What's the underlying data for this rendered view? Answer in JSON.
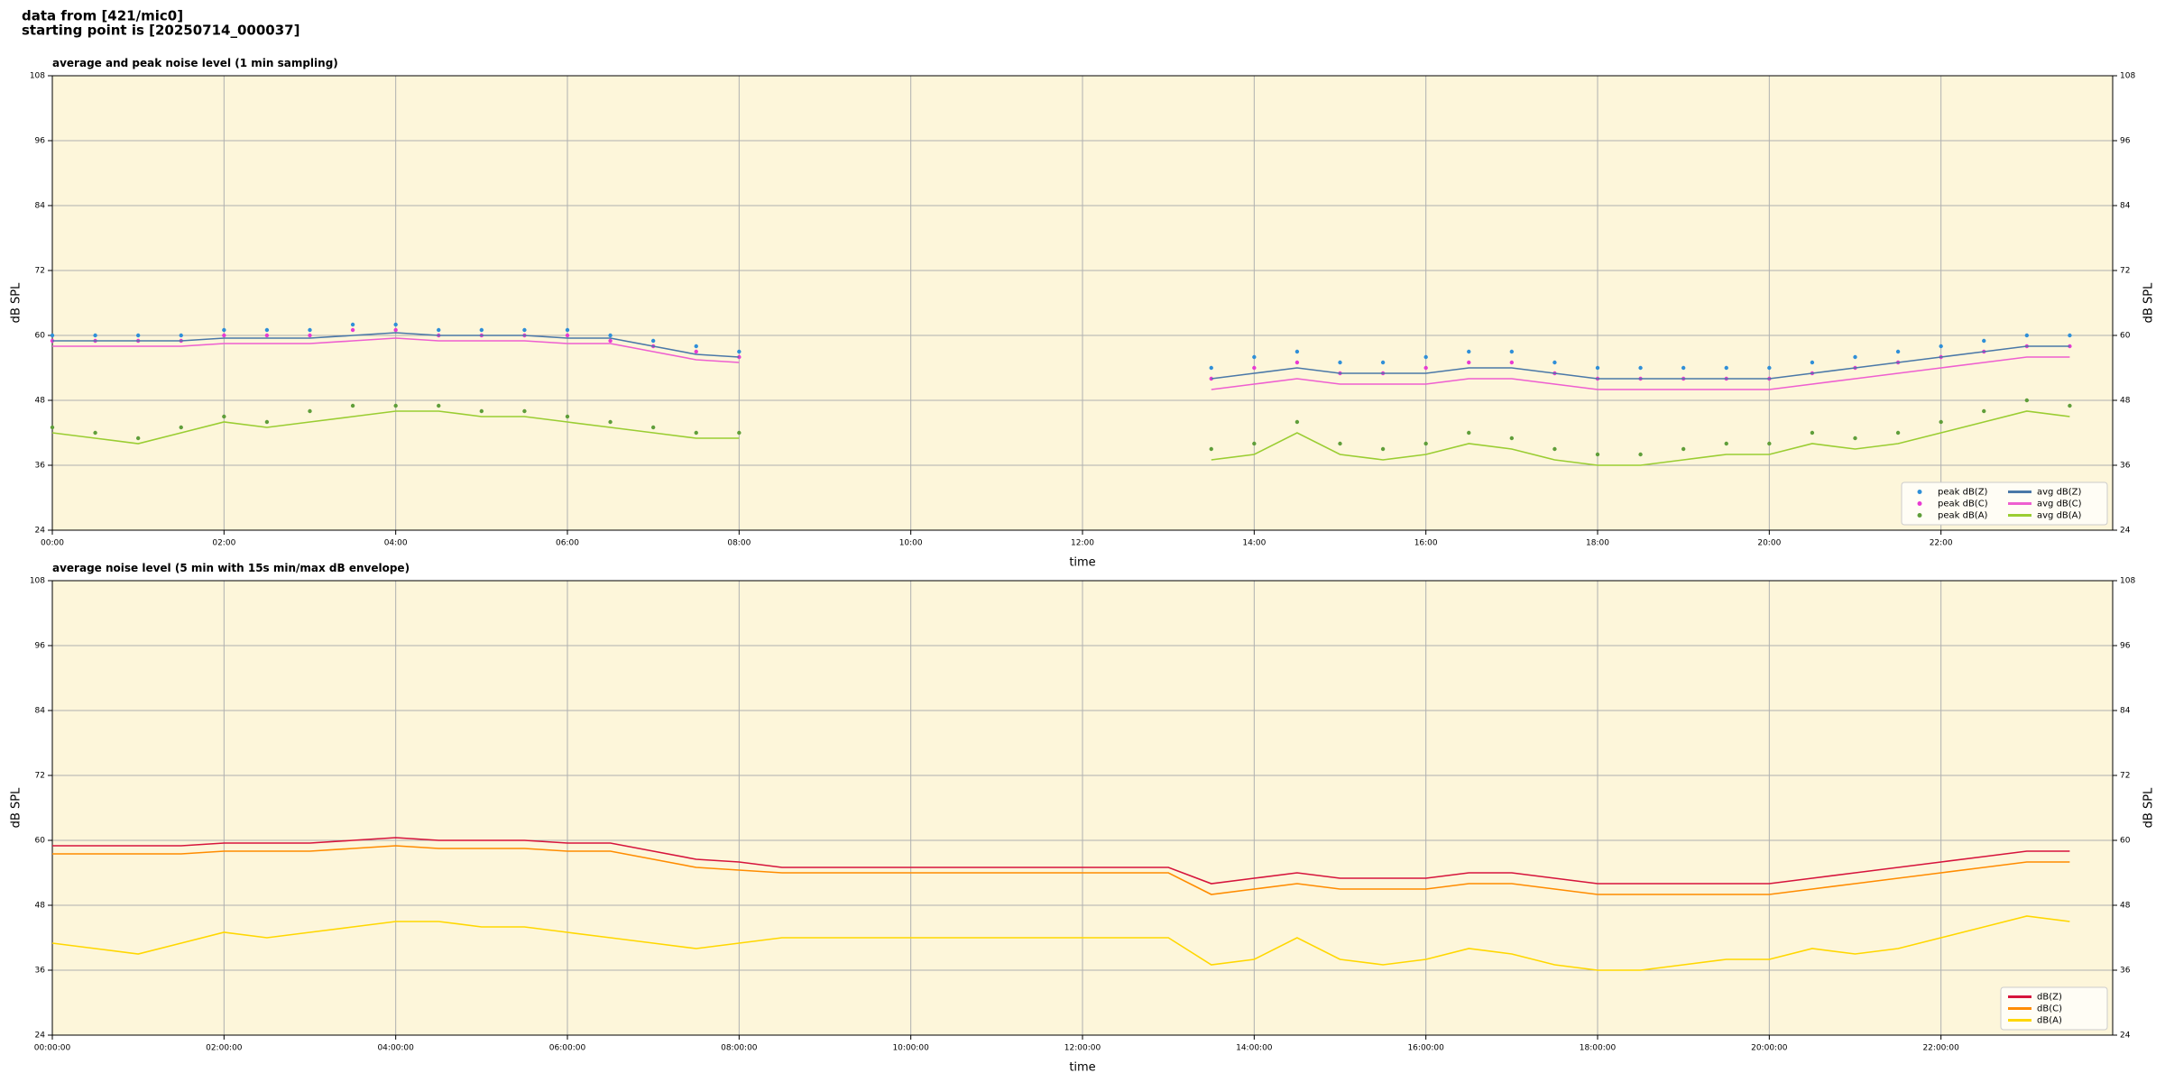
{
  "header": [
    "data from [421/mic0]",
    "starting point is [20250714_000037]"
  ],
  "chart_data": [
    {
      "type": "line",
      "title": "average and peak noise level (1 min sampling)",
      "xlabel": "time",
      "ylabel": "dB SPL",
      "xlim": [
        0,
        24
      ],
      "ylim": [
        24,
        108
      ],
      "yticks": [
        24,
        36,
        48,
        60,
        72,
        84,
        96,
        108
      ],
      "grid": true,
      "legend": "lower right",
      "legend_columns": 2,
      "xticks": [
        {
          "value": 0,
          "label": "00:00"
        },
        {
          "value": 2,
          "label": "02:00"
        },
        {
          "value": 4,
          "label": "04:00"
        },
        {
          "value": 6,
          "label": "06:00"
        },
        {
          "value": 8,
          "label": "08:00"
        },
        {
          "value": 10,
          "label": "10:00"
        },
        {
          "value": 12,
          "label": "12:00"
        },
        {
          "value": 14,
          "label": "14:00"
        },
        {
          "value": 16,
          "label": "16:00"
        },
        {
          "value": 18,
          "label": "18:00"
        },
        {
          "value": 20,
          "label": "20:00"
        },
        {
          "value": 22,
          "label": "22:00"
        }
      ],
      "x": [
        0,
        0.5,
        1,
        1.5,
        2,
        2.5,
        3,
        3.5,
        4,
        4.5,
        5,
        5.5,
        6,
        6.5,
        7,
        7.5,
        8,
        8.5,
        9,
        9.5,
        10,
        10.5,
        11,
        11.5,
        12,
        12.5,
        13,
        13.5,
        14,
        14.5,
        15,
        15.5,
        16,
        16.5,
        17,
        17.5,
        18,
        18.5,
        19,
        19.5,
        20,
        20.5,
        21,
        21.5,
        22,
        22.5,
        23,
        23.5
      ],
      "series": [
        {
          "name": "peak dB(Z)",
          "kind": "points",
          "color": "#2f8fd8",
          "values": [
            60,
            60,
            60,
            60,
            61,
            61,
            61,
            62,
            62,
            61,
            61,
            61,
            61,
            60,
            59,
            58,
            57,
            null,
            null,
            null,
            null,
            null,
            null,
            null,
            null,
            null,
            null,
            54,
            56,
            57,
            55,
            55,
            56,
            57,
            57,
            55,
            54,
            54,
            54,
            54,
            54,
            55,
            56,
            57,
            58,
            59,
            60,
            60
          ]
        },
        {
          "name": "peak dB(C)",
          "kind": "points",
          "color": "#e83ad2",
          "values": [
            59,
            59,
            59,
            59,
            60,
            60,
            60,
            61,
            61,
            60,
            60,
            60,
            60,
            59,
            58,
            57,
            56,
            null,
            null,
            null,
            null,
            null,
            null,
            null,
            null,
            null,
            null,
            52,
            54,
            55,
            53,
            53,
            54,
            55,
            55,
            53,
            52,
            52,
            52,
            52,
            52,
            53,
            54,
            55,
            56,
            57,
            58,
            58
          ]
        },
        {
          "name": "peak dB(A)",
          "kind": "points",
          "color": "#5f9e3a",
          "values": [
            43,
            42,
            41,
            43,
            45,
            44,
            46,
            47,
            47,
            47,
            46,
            46,
            45,
            44,
            43,
            42,
            42,
            null,
            null,
            null,
            null,
            null,
            null,
            null,
            null,
            null,
            null,
            39,
            40,
            44,
            40,
            39,
            40,
            42,
            41,
            39,
            38,
            38,
            39,
            40,
            40,
            42,
            41,
            42,
            44,
            46,
            48,
            47
          ]
        },
        {
          "name": "avg dB(Z)",
          "kind": "line",
          "color": "#4a78a8",
          "values": [
            59,
            59,
            59,
            59,
            59.5,
            59.5,
            59.5,
            60,
            60.5,
            60,
            60,
            60,
            59.5,
            59.5,
            58,
            56.5,
            56,
            null,
            null,
            null,
            null,
            null,
            null,
            null,
            null,
            null,
            null,
            52,
            53,
            54,
            53,
            53,
            53,
            54,
            54,
            53,
            52,
            52,
            52,
            52,
            52,
            53,
            54,
            55,
            56,
            57,
            58,
            58
          ]
        },
        {
          "name": "avg dB(C)",
          "kind": "line",
          "color": "#ee5fd0",
          "values": [
            58,
            58,
            58,
            58,
            58.5,
            58.5,
            58.5,
            59,
            59.5,
            59,
            59,
            59,
            58.5,
            58.5,
            57,
            55.5,
            55,
            null,
            null,
            null,
            null,
            null,
            null,
            null,
            null,
            null,
            null,
            50,
            51,
            52,
            51,
            51,
            51,
            52,
            52,
            51,
            50,
            50,
            50,
            50,
            50,
            51,
            52,
            53,
            54,
            55,
            56,
            56
          ]
        },
        {
          "name": "avg dB(A)",
          "kind": "line",
          "color": "#9acd32",
          "values": [
            42,
            41,
            40,
            42,
            44,
            43,
            44,
            45,
            46,
            46,
            45,
            45,
            44,
            43,
            42,
            41,
            41,
            null,
            null,
            null,
            null,
            null,
            null,
            null,
            null,
            null,
            null,
            37,
            38,
            42,
            38,
            37,
            38,
            40,
            39,
            37,
            36,
            36,
            37,
            38,
            38,
            40,
            39,
            40,
            42,
            44,
            46,
            45
          ]
        }
      ]
    },
    {
      "type": "line",
      "title": "average noise level (5 min with 15s min/max dB envelope)",
      "xlabel": "time",
      "ylabel": "dB SPL",
      "xlim": [
        0,
        24
      ],
      "ylim": [
        24,
        108
      ],
      "yticks": [
        24,
        36,
        48,
        60,
        72,
        84,
        96,
        108
      ],
      "grid": true,
      "legend": "lower right",
      "legend_columns": 1,
      "xticks": [
        {
          "value": 0,
          "label": "00:00:00"
        },
        {
          "value": 2,
          "label": "02:00:00"
        },
        {
          "value": 4,
          "label": "04:00:00"
        },
        {
          "value": 6,
          "label": "06:00:00"
        },
        {
          "value": 8,
          "label": "08:00:00"
        },
        {
          "value": 10,
          "label": "10:00:00"
        },
        {
          "value": 12,
          "label": "12:00:00"
        },
        {
          "value": 14,
          "label": "14:00:00"
        },
        {
          "value": 16,
          "label": "16:00:00"
        },
        {
          "value": 18,
          "label": "18:00:00"
        },
        {
          "value": 20,
          "label": "20:00:00"
        },
        {
          "value": 22,
          "label": "22:00:00"
        }
      ],
      "x": [
        0,
        0.5,
        1,
        1.5,
        2,
        2.5,
        3,
        3.5,
        4,
        4.5,
        5,
        5.5,
        6,
        6.5,
        7,
        7.5,
        8,
        8.5,
        9,
        9.5,
        10,
        10.5,
        11,
        11.5,
        12,
        12.5,
        13,
        13.5,
        14,
        14.5,
        15,
        15.5,
        16,
        16.5,
        17,
        17.5,
        18,
        18.5,
        19,
        19.5,
        20,
        20.5,
        21,
        21.5,
        22,
        22.5,
        23,
        23.5
      ],
      "series": [
        {
          "name": "dB(Z)",
          "kind": "line",
          "color": "#d6143c",
          "values": [
            59,
            59,
            59,
            59,
            59.5,
            59.5,
            59.5,
            60,
            60.5,
            60,
            60,
            60,
            59.5,
            59.5,
            58,
            56.5,
            56,
            55,
            55,
            55,
            55,
            55,
            55,
            55,
            55,
            55,
            55,
            52,
            53,
            54,
            53,
            53,
            53,
            54,
            54,
            53,
            52,
            52,
            52,
            52,
            52,
            53,
            54,
            55,
            56,
            57,
            58,
            58
          ]
        },
        {
          "name": "dB(C)",
          "kind": "line",
          "color": "#ff8c00",
          "values": [
            57.5,
            57.5,
            57.5,
            57.5,
            58,
            58,
            58,
            58.5,
            59,
            58.5,
            58.5,
            58.5,
            58,
            58,
            56.5,
            55,
            54.5,
            54,
            54,
            54,
            54,
            54,
            54,
            54,
            54,
            54,
            54,
            50,
            51,
            52,
            51,
            51,
            51,
            52,
            52,
            51,
            50,
            50,
            50,
            50,
            50,
            51,
            52,
            53,
            54,
            55,
            56,
            56
          ]
        },
        {
          "name": "dB(A)",
          "kind": "line",
          "color": "#ffd700",
          "values": [
            41,
            40,
            39,
            41,
            43,
            42,
            43,
            44,
            45,
            45,
            44,
            44,
            43,
            42,
            41,
            40,
            41,
            42,
            42,
            42,
            42,
            42,
            42,
            42,
            42,
            42,
            42,
            37,
            38,
            42,
            38,
            37,
            38,
            40,
            39,
            37,
            36,
            36,
            37,
            38,
            38,
            40,
            39,
            40,
            42,
            44,
            46,
            45
          ]
        }
      ]
    }
  ]
}
